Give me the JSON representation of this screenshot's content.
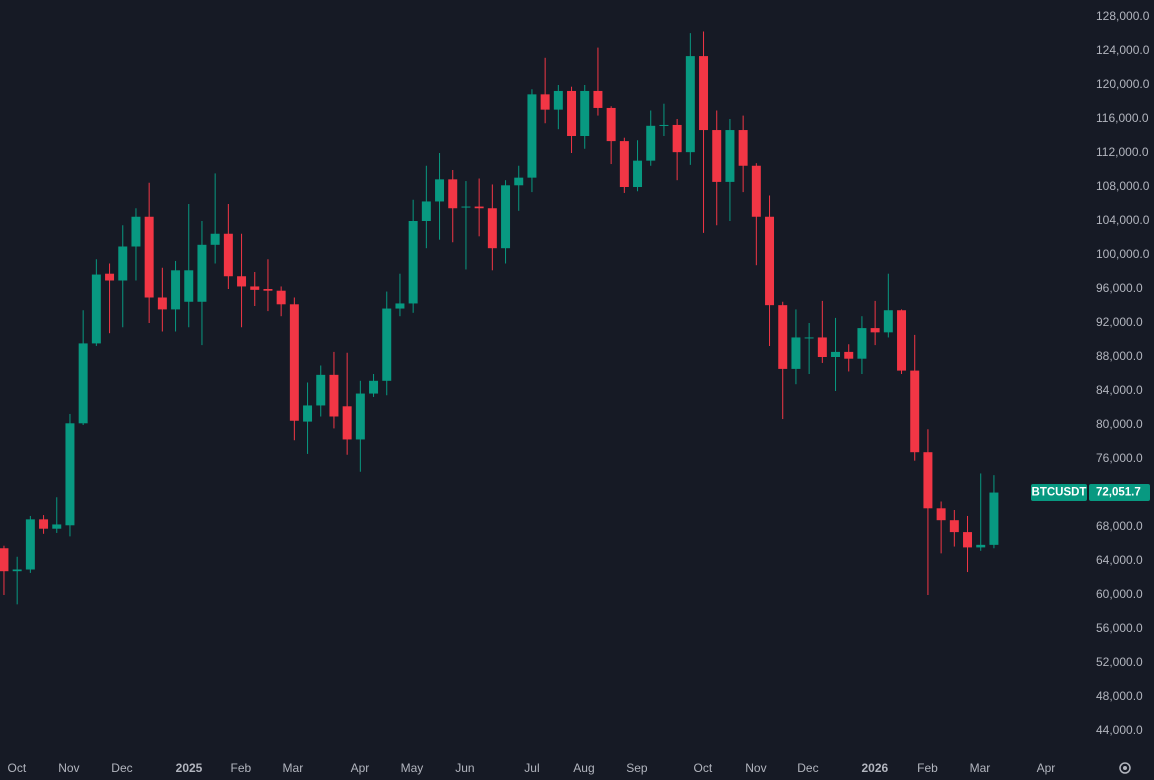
{
  "chart_data": {
    "type": "candlestick",
    "symbol": "BTCUSDT",
    "last_price": {
      "value": 72051.7,
      "label": "72,051.7"
    },
    "up_color": "#089981",
    "down_color": "#f23645",
    "grid": false,
    "xlim": [
      -0.3,
      81.9
    ],
    "xticks": [
      {
        "value": 0.98,
        "label": "Oct"
      },
      {
        "value": 4.92,
        "label": "Nov"
      },
      {
        "value": 8.94,
        "label": "Dec"
      },
      {
        "value": 14.02,
        "label": "2025"
      },
      {
        "value": 17.95,
        "label": "Feb"
      },
      {
        "value": 21.89,
        "label": "Mar"
      },
      {
        "value": 26.97,
        "label": "Apr"
      },
      {
        "value": 30.91,
        "label": "May"
      },
      {
        "value": 34.92,
        "label": "Jun"
      },
      {
        "value": 40.0,
        "label": "Jul"
      },
      {
        "value": 43.94,
        "label": "Aug"
      },
      {
        "value": 47.95,
        "label": "Sep"
      },
      {
        "value": 52.95,
        "label": "Oct"
      },
      {
        "value": 56.97,
        "label": "Nov"
      },
      {
        "value": 60.91,
        "label": "Dec"
      },
      {
        "value": 65.98,
        "label": "2026"
      },
      {
        "value": 69.97,
        "label": "Feb"
      },
      {
        "value": 73.94,
        "label": "Mar"
      },
      {
        "value": 78.94,
        "label": "Apr"
      }
    ],
    "ylim": [
      41000,
      130000
    ],
    "yticks": [
      {
        "value": 44000,
        "label": "44,000.0"
      },
      {
        "value": 48000,
        "label": "48,000.0"
      },
      {
        "value": 52000,
        "label": "52,000.0"
      },
      {
        "value": 56000,
        "label": "56,000.0"
      },
      {
        "value": 60000,
        "label": "60,000.0"
      },
      {
        "value": 64000,
        "label": "64,000.0"
      },
      {
        "value": 68000,
        "label": "68,000.0"
      },
      {
        "value": 72000,
        "label": "72,000.0"
      },
      {
        "value": 76000,
        "label": "76,000.0"
      },
      {
        "value": 80000,
        "label": "80,000.0"
      },
      {
        "value": 84000,
        "label": "84,000.0"
      },
      {
        "value": 88000,
        "label": "88,000.0"
      },
      {
        "value": 92000,
        "label": "92,000.0"
      },
      {
        "value": 96000,
        "label": "96,000.0"
      },
      {
        "value": 100000,
        "label": "100,000.0"
      },
      {
        "value": 104000,
        "label": "104,000.0"
      },
      {
        "value": 108000,
        "label": "108,000.0"
      },
      {
        "value": 112000,
        "label": "112,000.0"
      },
      {
        "value": 116000,
        "label": "116,000.0"
      },
      {
        "value": 120000,
        "label": "120,000.0"
      },
      {
        "value": 124000,
        "label": "124,000.0"
      },
      {
        "value": 128000,
        "label": "128,000.0"
      }
    ],
    "candles": {
      "open": [
        65500,
        62800,
        63000,
        68900,
        67800,
        68200,
        80200,
        89600,
        97800,
        97000,
        101000,
        104500,
        95000,
        93600,
        94500,
        94500,
        101200,
        102500,
        97500,
        96300,
        96000,
        95800,
        94200,
        80400,
        82300,
        85900,
        82200,
        78300,
        83700,
        85200,
        93700,
        94300,
        104000,
        106300,
        108900,
        105600,
        105700,
        105500,
        100800,
        108200,
        109100,
        118900,
        117100,
        119300,
        114000,
        119300,
        117300,
        113400,
        108000,
        111100,
        115200,
        115300,
        112100,
        123400,
        114700,
        108600,
        114700,
        110500,
        104500,
        94100,
        86600,
        90300,
        90300,
        88000,
        88600,
        87800,
        91400,
        90900,
        93500,
        86400,
        76800,
        70200,
        68800,
        67400,
        65600,
        65900
      ],
      "high": [
        65800,
        64500,
        69300,
        69400,
        71500,
        81300,
        93500,
        99500,
        99000,
        103500,
        105500,
        108500,
        98500,
        99300,
        106000,
        104000,
        109600,
        106000,
        102500,
        98000,
        99500,
        96300,
        95000,
        85000,
        87000,
        88600,
        88500,
        85200,
        86000,
        95700,
        97800,
        106500,
        110500,
        112000,
        110000,
        108700,
        109000,
        108300,
        108800,
        110500,
        119500,
        123200,
        120000,
        119800,
        120000,
        124400,
        117500,
        113800,
        113500,
        117000,
        117800,
        116000,
        126100,
        126300,
        117000,
        116000,
        116400,
        110800,
        107000,
        94500,
        93600,
        92000,
        94600,
        92600,
        89500,
        92800,
        94600,
        97800,
        93600,
        90600,
        79500,
        71000,
        70000,
        69300,
        74300,
        74100
      ],
      "low": [
        60000,
        58900,
        62600,
        67200,
        67300,
        66900,
        80000,
        89300,
        90800,
        91500,
        97000,
        92000,
        91000,
        91000,
        91500,
        89400,
        99000,
        96000,
        91500,
        94000,
        93400,
        92800,
        78200,
        76600,
        81000,
        79600,
        76500,
        74500,
        83300,
        83500,
        92800,
        93200,
        100800,
        101800,
        101500,
        98300,
        102200,
        98200,
        99000,
        105200,
        107400,
        115500,
        114800,
        112000,
        112500,
        116400,
        110700,
        107300,
        107500,
        110500,
        114000,
        108800,
        110600,
        102600,
        103500,
        104000,
        107400,
        98800,
        89300,
        80700,
        84800,
        86000,
        87300,
        84000,
        86300,
        86000,
        89400,
        90300,
        86000,
        75800,
        60000,
        64900,
        65700,
        62700,
        65200,
        65500
      ],
      "close": [
        62800,
        63000,
        68900,
        67800,
        68300,
        80200,
        89600,
        97700,
        97000,
        101000,
        104500,
        95000,
        93600,
        98200,
        98200,
        101200,
        102500,
        97500,
        96300,
        95900,
        95800,
        94200,
        80500,
        82300,
        85900,
        81000,
        78300,
        83700,
        85200,
        93700,
        94300,
        104000,
        106300,
        108900,
        105500,
        105700,
        105500,
        100800,
        108200,
        109100,
        118900,
        117100,
        119300,
        114000,
        119300,
        117300,
        113400,
        108000,
        111100,
        115200,
        115300,
        112100,
        123400,
        114700,
        108600,
        114700,
        110500,
        104500,
        94100,
        86600,
        90300,
        90300,
        88000,
        88600,
        87800,
        91400,
        90900,
        93500,
        86400,
        76800,
        70200,
        68800,
        67400,
        65600,
        65900,
        72051.7
      ]
    }
  }
}
